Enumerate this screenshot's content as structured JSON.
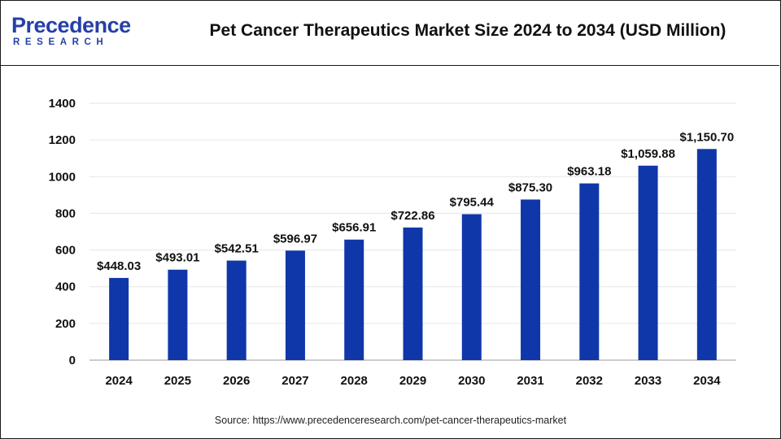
{
  "header": {
    "logo_name": "Precedence",
    "logo_sub": "RESEARCH",
    "title": "Pet Cancer Therapeutics Market Size 2024 to 2034 (USD Million)"
  },
  "chart_data": {
    "type": "bar",
    "categories": [
      "2024",
      "2025",
      "2026",
      "2027",
      "2028",
      "2029",
      "2030",
      "2031",
      "2032",
      "2033",
      "2034"
    ],
    "values": [
      448.03,
      493.01,
      542.51,
      596.97,
      656.91,
      722.86,
      795.44,
      875.3,
      963.18,
      1059.88,
      1150.7
    ],
    "data_labels": [
      "$448.03",
      "$493.01",
      "$542.51",
      "$596.97",
      "$656.91",
      "$722.86",
      "$795.44",
      "$875.30",
      "$963.18",
      "$1,059.88",
      "$1,150.70"
    ],
    "yticks": [
      "0",
      "200",
      "400",
      "600",
      "800",
      "1000",
      "1200",
      "1400"
    ],
    "ylim": [
      0,
      1400
    ],
    "bar_color": "#0f37a9",
    "grid": true,
    "legend": "none",
    "xlabel": "",
    "ylabel": ""
  },
  "footer": {
    "source": "Source: https://www.precedenceresearch.com/pet-cancer-therapeutics-market"
  },
  "colors": {
    "brand": "#2540a8",
    "bar": "#0f37a9",
    "grid": "#e6e6e6",
    "text": "#111111"
  }
}
